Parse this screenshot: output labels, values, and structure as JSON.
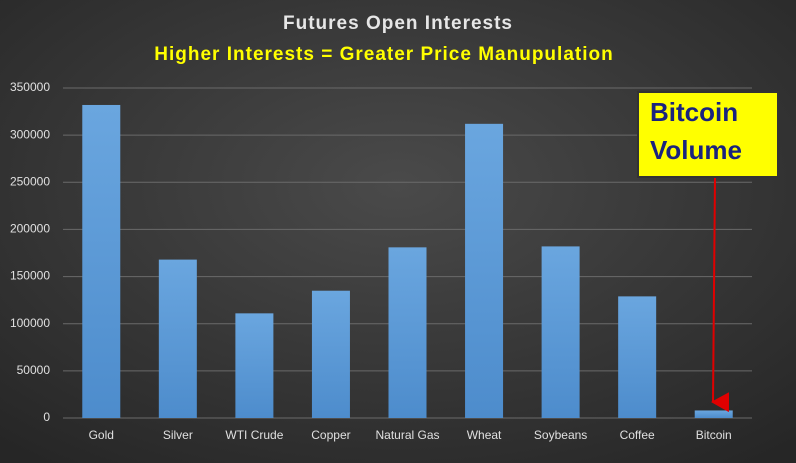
{
  "chart_data": {
    "type": "bar",
    "title": "Futures Open Interests",
    "subtitle": "Higher Interests = Greater Price Manupulation",
    "categories": [
      "Gold",
      "Silver",
      "WTI Crude",
      "Copper",
      "Natural Gas",
      "Wheat",
      "Soybeans",
      "Coffee",
      "Bitcoin"
    ],
    "values": [
      332000,
      168000,
      111000,
      135000,
      181000,
      312000,
      182000,
      129000,
      8000
    ],
    "color": "#5b9bd5",
    "ylim": [
      0,
      350000
    ],
    "yticks": [
      0,
      50000,
      100000,
      150000,
      200000,
      250000,
      300000,
      350000
    ],
    "grid": true,
    "annotation": [
      "Bitcoin",
      "Volume"
    ]
  }
}
